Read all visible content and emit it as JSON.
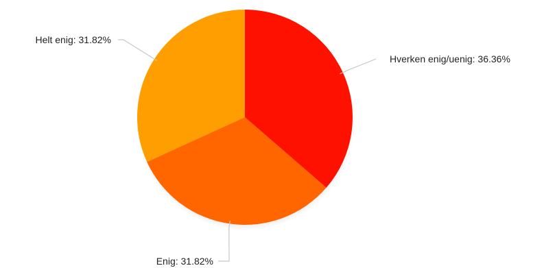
{
  "chart_data": {
    "type": "pie",
    "start_angle_deg": 0,
    "direction": "clockwise",
    "slices": [
      {
        "label": "Hverken enig/uenig",
        "value": 36.36,
        "display": "Hverken enig/uenig: 36.36%",
        "color": "#ff1100"
      },
      {
        "label": "Enig",
        "value": 31.82,
        "display": "Enig: 31.82%",
        "color": "#ff6600"
      },
      {
        "label": "Helt enig",
        "value": 31.82,
        "display": "Helt enig: 31.82%",
        "color": "#ff9e00"
      }
    ]
  }
}
